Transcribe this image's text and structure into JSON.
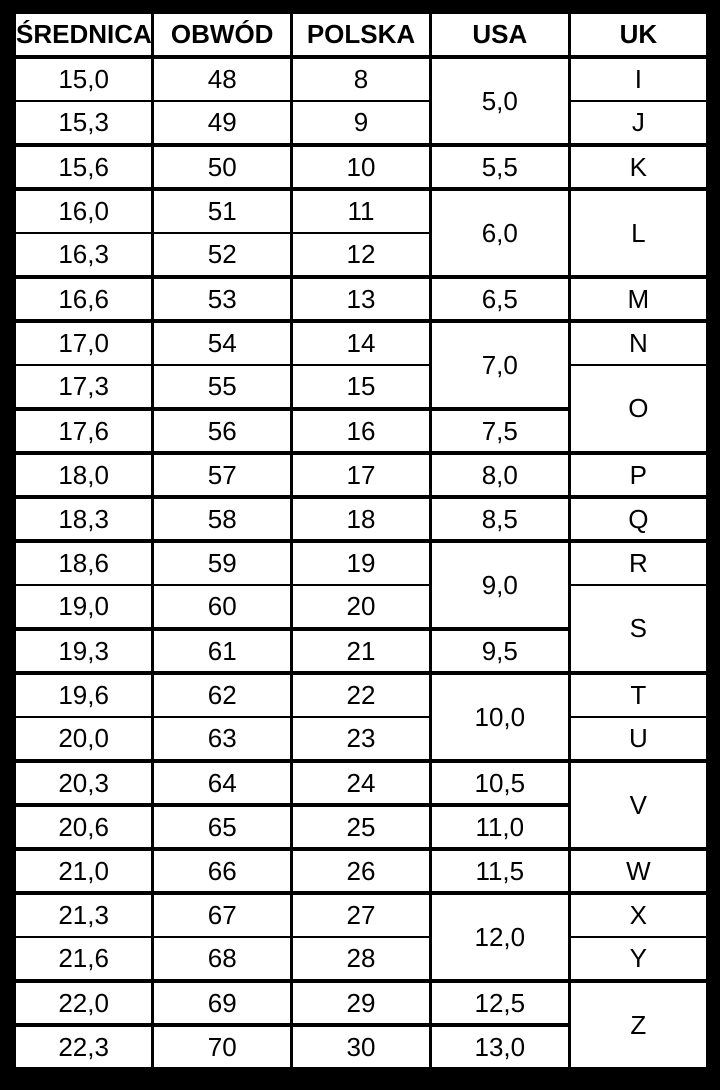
{
  "colors": {
    "page_background": "#000000",
    "cell_background": "#ffffff",
    "grid": "#000000",
    "text": "#000000"
  },
  "table": {
    "headers": [
      "ŚREDNICA",
      "OBWÓD",
      "POLSKA",
      "USA",
      "UK"
    ],
    "rows": [
      {
        "group_start": false,
        "cells": [
          {
            "col": "srednica",
            "text": "15,0",
            "rowspan": 1
          },
          {
            "col": "obwod",
            "text": "48",
            "rowspan": 1
          },
          {
            "col": "polska",
            "text": "8",
            "rowspan": 1
          },
          {
            "col": "usa",
            "text": "5,0",
            "rowspan": 2
          },
          {
            "col": "uk",
            "text": "I",
            "rowspan": 1
          }
        ]
      },
      {
        "group_start": false,
        "cells": [
          {
            "col": "srednica",
            "text": "15,3",
            "rowspan": 1
          },
          {
            "col": "obwod",
            "text": "49",
            "rowspan": 1
          },
          {
            "col": "polska",
            "text": "9",
            "rowspan": 1
          },
          {
            "col": "uk",
            "text": "J",
            "rowspan": 1
          }
        ]
      },
      {
        "group_start": true,
        "cells": [
          {
            "col": "srednica",
            "text": "15,6",
            "rowspan": 1
          },
          {
            "col": "obwod",
            "text": "50",
            "rowspan": 1
          },
          {
            "col": "polska",
            "text": "10",
            "rowspan": 1
          },
          {
            "col": "usa",
            "text": "5,5",
            "rowspan": 1
          },
          {
            "col": "uk",
            "text": "K",
            "rowspan": 1
          }
        ]
      },
      {
        "group_start": true,
        "cells": [
          {
            "col": "srednica",
            "text": "16,0",
            "rowspan": 1
          },
          {
            "col": "obwod",
            "text": "51",
            "rowspan": 1
          },
          {
            "col": "polska",
            "text": "11",
            "rowspan": 1
          },
          {
            "col": "usa",
            "text": "6,0",
            "rowspan": 2
          },
          {
            "col": "uk",
            "text": "L",
            "rowspan": 2
          }
        ]
      },
      {
        "group_start": false,
        "cells": [
          {
            "col": "srednica",
            "text": "16,3",
            "rowspan": 1
          },
          {
            "col": "obwod",
            "text": "52",
            "rowspan": 1
          },
          {
            "col": "polska",
            "text": "12",
            "rowspan": 1
          }
        ]
      },
      {
        "group_start": true,
        "cells": [
          {
            "col": "srednica",
            "text": "16,6",
            "rowspan": 1
          },
          {
            "col": "obwod",
            "text": "53",
            "rowspan": 1
          },
          {
            "col": "polska",
            "text": "13",
            "rowspan": 1
          },
          {
            "col": "usa",
            "text": "6,5",
            "rowspan": 1
          },
          {
            "col": "uk",
            "text": "M",
            "rowspan": 1
          }
        ]
      },
      {
        "group_start": true,
        "cells": [
          {
            "col": "srednica",
            "text": "17,0",
            "rowspan": 1
          },
          {
            "col": "obwod",
            "text": "54",
            "rowspan": 1
          },
          {
            "col": "polska",
            "text": "14",
            "rowspan": 1
          },
          {
            "col": "usa",
            "text": "7,0",
            "rowspan": 2
          },
          {
            "col": "uk",
            "text": "N",
            "rowspan": 1
          }
        ]
      },
      {
        "group_start": false,
        "cells": [
          {
            "col": "srednica",
            "text": "17,3",
            "rowspan": 1
          },
          {
            "col": "obwod",
            "text": "55",
            "rowspan": 1
          },
          {
            "col": "polska",
            "text": "15",
            "rowspan": 1
          },
          {
            "col": "uk",
            "text": "O",
            "rowspan": 2
          }
        ]
      },
      {
        "group_start": true,
        "cells": [
          {
            "col": "srednica",
            "text": "17,6",
            "rowspan": 1
          },
          {
            "col": "obwod",
            "text": "56",
            "rowspan": 1
          },
          {
            "col": "polska",
            "text": "16",
            "rowspan": 1
          },
          {
            "col": "usa",
            "text": "7,5",
            "rowspan": 1
          }
        ]
      },
      {
        "group_start": true,
        "cells": [
          {
            "col": "srednica",
            "text": "18,0",
            "rowspan": 1
          },
          {
            "col": "obwod",
            "text": "57",
            "rowspan": 1
          },
          {
            "col": "polska",
            "text": "17",
            "rowspan": 1
          },
          {
            "col": "usa",
            "text": "8,0",
            "rowspan": 1
          },
          {
            "col": "uk",
            "text": "P",
            "rowspan": 1
          }
        ]
      },
      {
        "group_start": true,
        "cells": [
          {
            "col": "srednica",
            "text": "18,3",
            "rowspan": 1
          },
          {
            "col": "obwod",
            "text": "58",
            "rowspan": 1
          },
          {
            "col": "polska",
            "text": "18",
            "rowspan": 1
          },
          {
            "col": "usa",
            "text": "8,5",
            "rowspan": 1
          },
          {
            "col": "uk",
            "text": "Q",
            "rowspan": 1
          }
        ]
      },
      {
        "group_start": true,
        "cells": [
          {
            "col": "srednica",
            "text": "18,6",
            "rowspan": 1
          },
          {
            "col": "obwod",
            "text": "59",
            "rowspan": 1
          },
          {
            "col": "polska",
            "text": "19",
            "rowspan": 1
          },
          {
            "col": "usa",
            "text": "9,0",
            "rowspan": 2
          },
          {
            "col": "uk",
            "text": "R",
            "rowspan": 1
          }
        ]
      },
      {
        "group_start": false,
        "cells": [
          {
            "col": "srednica",
            "text": "19,0",
            "rowspan": 1
          },
          {
            "col": "obwod",
            "text": "60",
            "rowspan": 1
          },
          {
            "col": "polska",
            "text": "20",
            "rowspan": 1
          },
          {
            "col": "uk",
            "text": "S",
            "rowspan": 2
          }
        ]
      },
      {
        "group_start": true,
        "cells": [
          {
            "col": "srednica",
            "text": "19,3",
            "rowspan": 1
          },
          {
            "col": "obwod",
            "text": "61",
            "rowspan": 1
          },
          {
            "col": "polska",
            "text": "21",
            "rowspan": 1
          },
          {
            "col": "usa",
            "text": "9,5",
            "rowspan": 1
          }
        ]
      },
      {
        "group_start": true,
        "cells": [
          {
            "col": "srednica",
            "text": "19,6",
            "rowspan": 1
          },
          {
            "col": "obwod",
            "text": "62",
            "rowspan": 1
          },
          {
            "col": "polska",
            "text": "22",
            "rowspan": 1
          },
          {
            "col": "usa",
            "text": "10,0",
            "rowspan": 2
          },
          {
            "col": "uk",
            "text": "T",
            "rowspan": 1
          }
        ]
      },
      {
        "group_start": false,
        "cells": [
          {
            "col": "srednica",
            "text": "20,0",
            "rowspan": 1
          },
          {
            "col": "obwod",
            "text": "63",
            "rowspan": 1
          },
          {
            "col": "polska",
            "text": "23",
            "rowspan": 1
          },
          {
            "col": "uk",
            "text": "U",
            "rowspan": 1
          }
        ]
      },
      {
        "group_start": true,
        "cells": [
          {
            "col": "srednica",
            "text": "20,3",
            "rowspan": 1
          },
          {
            "col": "obwod",
            "text": "64",
            "rowspan": 1
          },
          {
            "col": "polska",
            "text": "24",
            "rowspan": 1
          },
          {
            "col": "usa",
            "text": "10,5",
            "rowspan": 1
          },
          {
            "col": "uk",
            "text": "V",
            "rowspan": 2
          }
        ]
      },
      {
        "group_start": true,
        "cells": [
          {
            "col": "srednica",
            "text": "20,6",
            "rowspan": 1
          },
          {
            "col": "obwod",
            "text": "65",
            "rowspan": 1
          },
          {
            "col": "polska",
            "text": "25",
            "rowspan": 1
          },
          {
            "col": "usa",
            "text": "11,0",
            "rowspan": 1
          }
        ]
      },
      {
        "group_start": true,
        "cells": [
          {
            "col": "srednica",
            "text": "21,0",
            "rowspan": 1
          },
          {
            "col": "obwod",
            "text": "66",
            "rowspan": 1
          },
          {
            "col": "polska",
            "text": "26",
            "rowspan": 1
          },
          {
            "col": "usa",
            "text": "11,5",
            "rowspan": 1
          },
          {
            "col": "uk",
            "text": "W",
            "rowspan": 1
          }
        ]
      },
      {
        "group_start": true,
        "cells": [
          {
            "col": "srednica",
            "text": "21,3",
            "rowspan": 1
          },
          {
            "col": "obwod",
            "text": "67",
            "rowspan": 1
          },
          {
            "col": "polska",
            "text": "27",
            "rowspan": 1
          },
          {
            "col": "usa",
            "text": "12,0",
            "rowspan": 2
          },
          {
            "col": "uk",
            "text": "X",
            "rowspan": 1
          }
        ]
      },
      {
        "group_start": false,
        "cells": [
          {
            "col": "srednica",
            "text": "21,6",
            "rowspan": 1
          },
          {
            "col": "obwod",
            "text": "68",
            "rowspan": 1
          },
          {
            "col": "polska",
            "text": "28",
            "rowspan": 1
          },
          {
            "col": "uk",
            "text": "Y",
            "rowspan": 1
          }
        ]
      },
      {
        "group_start": true,
        "cells": [
          {
            "col": "srednica",
            "text": "22,0",
            "rowspan": 1
          },
          {
            "col": "obwod",
            "text": "69",
            "rowspan": 1
          },
          {
            "col": "polska",
            "text": "29",
            "rowspan": 1
          },
          {
            "col": "usa",
            "text": "12,5",
            "rowspan": 1
          },
          {
            "col": "uk",
            "text": "Z",
            "rowspan": 2
          }
        ]
      },
      {
        "group_start": true,
        "cells": [
          {
            "col": "srednica",
            "text": "22,3",
            "rowspan": 1
          },
          {
            "col": "obwod",
            "text": "70",
            "rowspan": 1
          },
          {
            "col": "polska",
            "text": "30",
            "rowspan": 1
          },
          {
            "col": "usa",
            "text": "13,0",
            "rowspan": 1
          }
        ]
      }
    ]
  }
}
